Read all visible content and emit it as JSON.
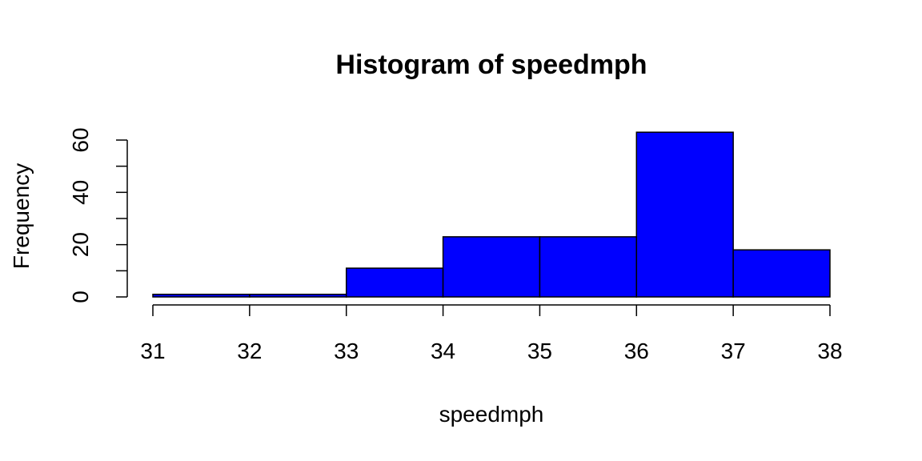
{
  "chart_data": {
    "type": "bar",
    "title": "Histogram of speedmph",
    "xlabel": "speedmph",
    "ylabel": "Frequency",
    "bins": [
      {
        "from": 31,
        "to": 32,
        "count": 1
      },
      {
        "from": 32,
        "to": 33,
        "count": 1
      },
      {
        "from": 33,
        "to": 34,
        "count": 11
      },
      {
        "from": 34,
        "to": 35,
        "count": 23
      },
      {
        "from": 35,
        "to": 36,
        "count": 23
      },
      {
        "from": 36,
        "to": 37,
        "count": 63
      },
      {
        "from": 37,
        "to": 38,
        "count": 18
      }
    ],
    "x_ticks": [
      31,
      32,
      33,
      34,
      35,
      36,
      37,
      38
    ],
    "y_ticks_labeled": [
      0,
      20,
      40,
      60
    ],
    "y_ticks_minor": [
      10,
      30,
      50
    ],
    "xlim": [
      31,
      38
    ],
    "ylim": [
      0,
      63
    ],
    "bar_color": "#0000ff",
    "border_color": "#000000",
    "grid": false
  }
}
